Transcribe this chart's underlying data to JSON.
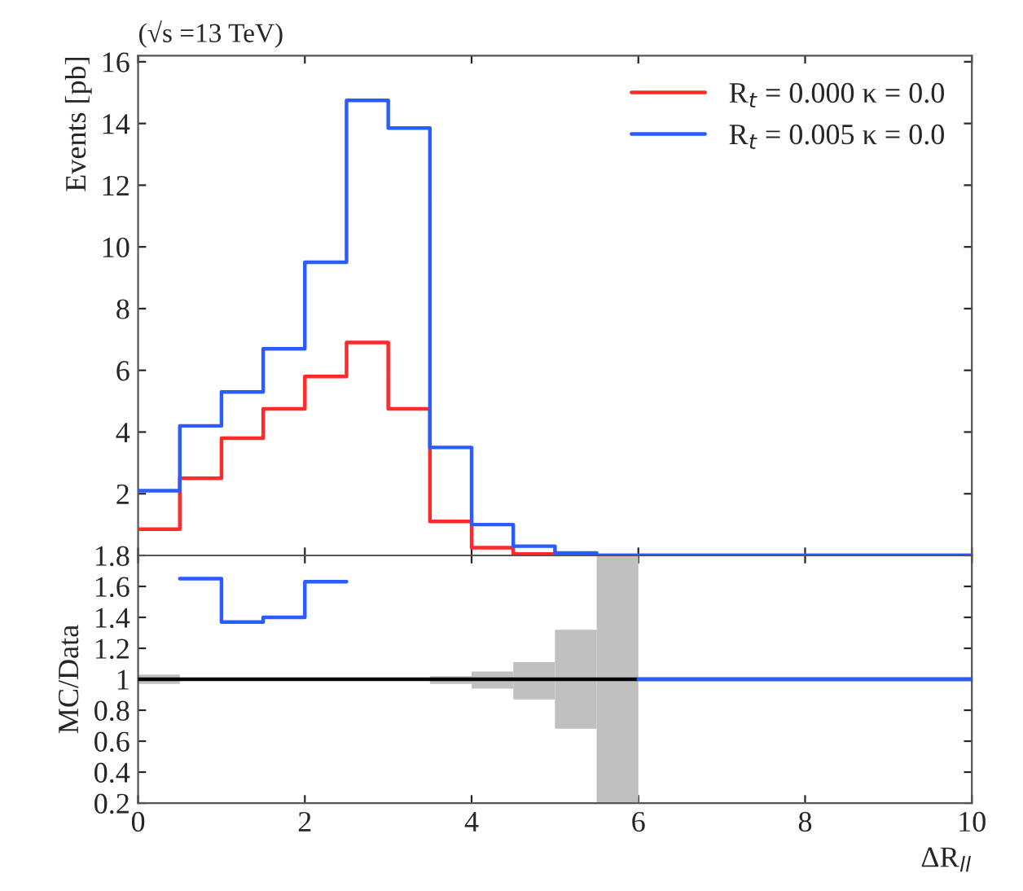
{
  "chart_data": [
    {
      "type": "histogram",
      "title": "(√s =13 TeV)",
      "ylabel": "Events [pb]",
      "bins": [
        0,
        0.5,
        1,
        1.5,
        2,
        2.5,
        3,
        3.5,
        4,
        4.5,
        5,
        5.5,
        6,
        6.5,
        7,
        7.5,
        8,
        8.5,
        9,
        9.5,
        10
      ],
      "series": [
        {
          "name": "R$_{t}$ = 0.000 κ = 0.0",
          "color": "#ff2a2a",
          "values": [
            0.85,
            2.5,
            3.8,
            4.75,
            5.8,
            6.9,
            4.75,
            1.1,
            0.25,
            0.05,
            0,
            0,
            0,
            0,
            0,
            0,
            0,
            0,
            0,
            0
          ]
        },
        {
          "name": "R$_{t}$ = 0.005 κ = 0.0",
          "color": "#2a5cff",
          "values": [
            2.1,
            4.2,
            5.3,
            6.7,
            9.5,
            14.75,
            13.85,
            3.5,
            1.0,
            0.3,
            0.08,
            0,
            0,
            0,
            0,
            0,
            0,
            0,
            0,
            0
          ]
        }
      ],
      "xlim": [
        0,
        10
      ],
      "xticks": [
        0,
        2,
        4,
        6,
        8,
        10
      ],
      "ylim": [
        0,
        16.2
      ],
      "yticks": [
        2,
        4,
        6,
        8,
        10,
        12,
        14,
        16
      ],
      "tick_labels": "y",
      "legend": "top right"
    },
    {
      "type": "histogram",
      "xlabel": "ΔR$_{ll}$",
      "ylabel": "MC/Data",
      "bins": [
        0,
        0.5,
        1,
        1.5,
        2,
        2.5,
        3,
        3.5,
        4,
        4.5,
        5,
        5.5,
        6,
        6.5,
        7,
        7.5,
        8,
        8.5,
        9,
        9.5,
        10
      ],
      "series": [
        {
          "type": "bar",
          "color": "#c0c0c0",
          "x": [
            0.25,
            3.75,
            4.25,
            4.75,
            5.25,
            5.75
          ],
          "base": [
            0.97,
            0.97,
            0.94,
            0.87,
            0.68,
            0.2
          ],
          "values": [
            0.06,
            0.05,
            0.11,
            0.24,
            0.64,
            1.6
          ]
        },
        {
          "color": "#000000",
          "values": [
            1,
            1,
            1,
            1,
            1,
            1,
            1,
            1,
            1,
            1,
            1,
            1,
            1,
            1,
            1,
            1,
            1,
            1,
            1,
            1
          ]
        },
        {
          "color": "#2a5cff",
          "bins": [
            0.5,
            1,
            1.5,
            2,
            2.5
          ],
          "values": [
            1.65,
            1.37,
            1.4,
            1.63
          ]
        },
        {
          "color": "#2a5cff",
          "bins": [
            6,
            6.5,
            7,
            7.5,
            8,
            8.5,
            9,
            9.5,
            10
          ],
          "values": [
            1,
            1,
            1,
            1,
            1,
            1,
            1,
            1
          ]
        }
      ],
      "xlim": [
        0,
        10
      ],
      "xticks": [
        0,
        2,
        4,
        6,
        8,
        10
      ],
      "ylim": [
        0.2,
        1.8
      ],
      "yticks": [
        0.2,
        0.4,
        0.6,
        0.8,
        1,
        1.2,
        1.4,
        1.6,
        1.8
      ]
    }
  ]
}
